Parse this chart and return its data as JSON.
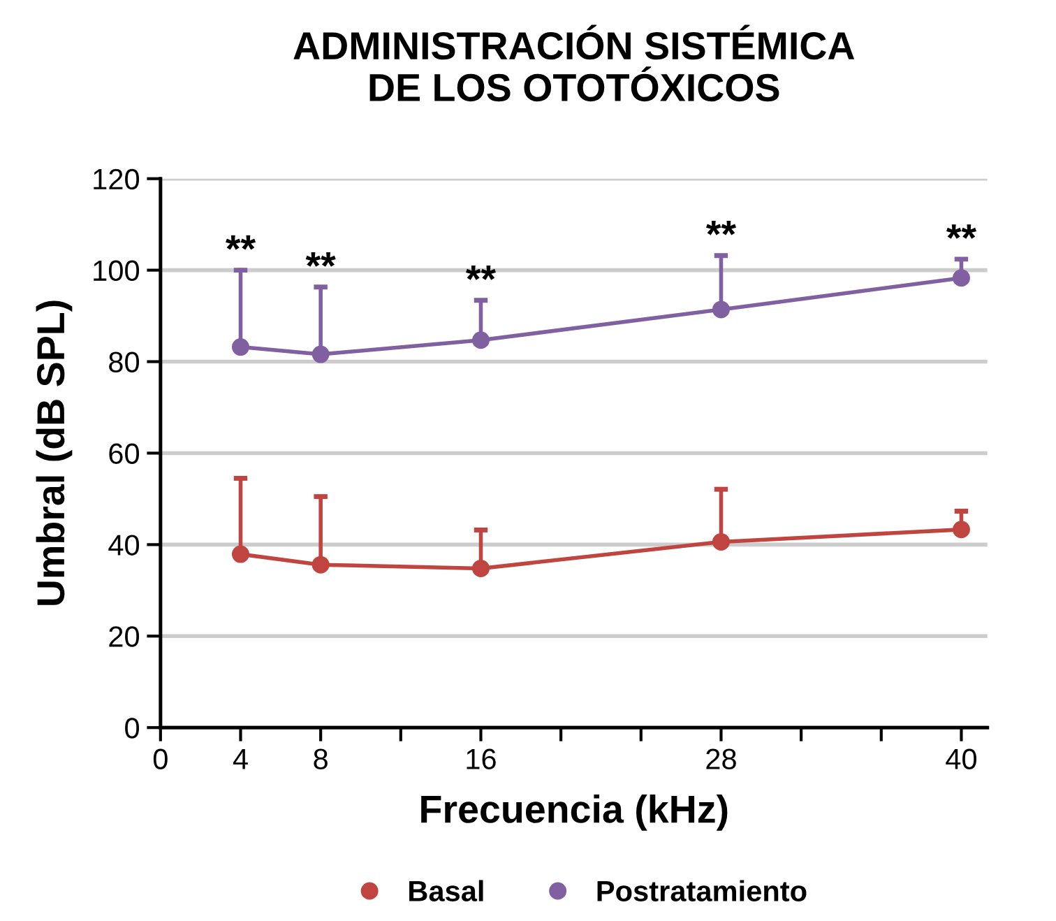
{
  "chart_data": {
    "type": "line",
    "title": "ADMINISTRACIÓN SISTÉMICA\nDE LOS OTOTÓXICOS",
    "xlabel": "Frecuencia (kHz)",
    "ylabel": "Umbral (dB SPL)",
    "x": [
      4,
      8,
      16,
      28,
      40
    ],
    "series": [
      {
        "name": "Basal",
        "color": "#c0443f",
        "values": [
          37.9,
          35.6,
          34.8,
          40.6,
          43.3
        ],
        "errors": [
          [
            37.9,
            54.5
          ],
          [
            35.6,
            50.5
          ],
          [
            34.8,
            43.2
          ],
          [
            40.6,
            52.1
          ],
          [
            43.3,
            47.3
          ]
        ]
      },
      {
        "name": "Postratamiento",
        "color": "#8060a0",
        "values": [
          83.2,
          81.6,
          84.7,
          91.4,
          98.3
        ],
        "errors": [
          [
            83.2,
            100
          ],
          [
            81.6,
            96.3
          ],
          [
            84.7,
            93.4
          ],
          [
            91.4,
            103.2
          ],
          [
            98.3,
            102.4
          ]
        ]
      }
    ],
    "annotations": [
      "**",
      "**",
      "**",
      "**",
      "**"
    ],
    "xlim": [
      0,
      41.3
    ],
    "ylim": [
      0,
      120
    ],
    "xticks": [
      0,
      4,
      8,
      {
        "value": 12,
        "label": null
      },
      16,
      {
        "value": 20,
        "label": null
      },
      {
        "value": 24,
        "label": null
      },
      28,
      {
        "value": 32,
        "label": null
      },
      {
        "value": 36,
        "label": null
      },
      40
    ],
    "yticks": [
      0,
      20,
      40,
      60,
      80,
      100,
      120
    ],
    "grid": "y",
    "legend": "bottom",
    "marker": "circle",
    "line_style": "solid"
  }
}
